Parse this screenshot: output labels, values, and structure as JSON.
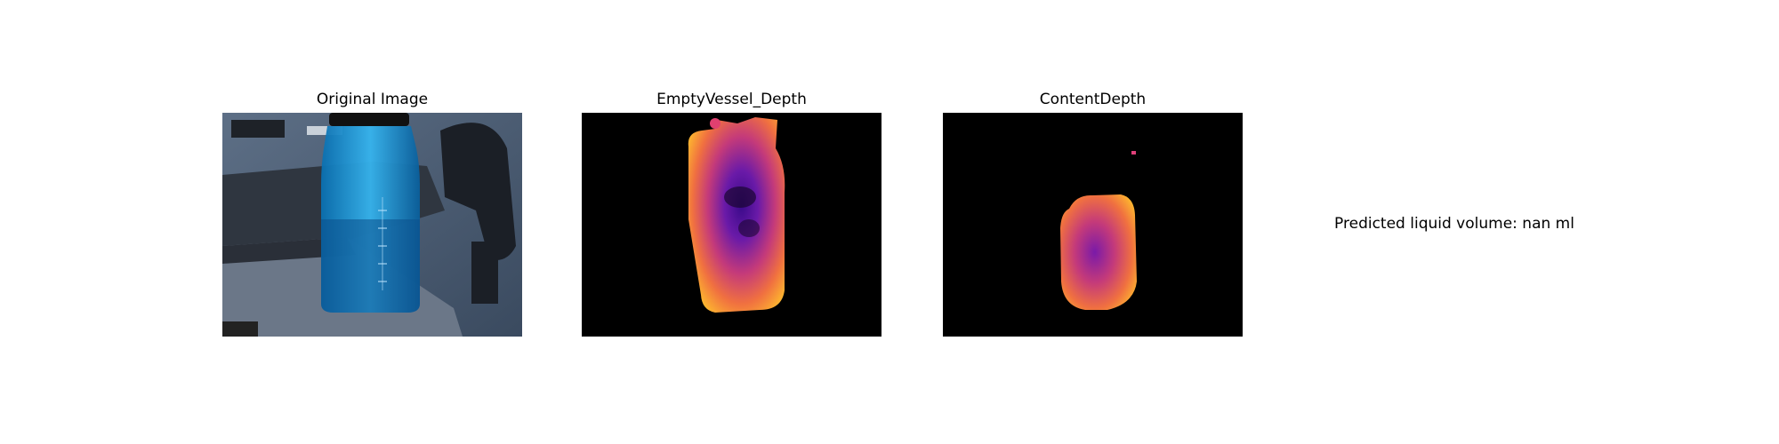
{
  "panels": [
    {
      "title": "Original Image"
    },
    {
      "title": "EmptyVessel_Depth"
    },
    {
      "title": "ContentDepth"
    }
  ],
  "prediction": {
    "text": "Predicted liquid volume: nan ml"
  },
  "colors": {
    "background": "#ffffff",
    "depth_background": "#000000",
    "colormap": [
      "#0d0887",
      "#6a00a8",
      "#b12a90",
      "#e16462",
      "#fca636",
      "#f0f921"
    ]
  }
}
